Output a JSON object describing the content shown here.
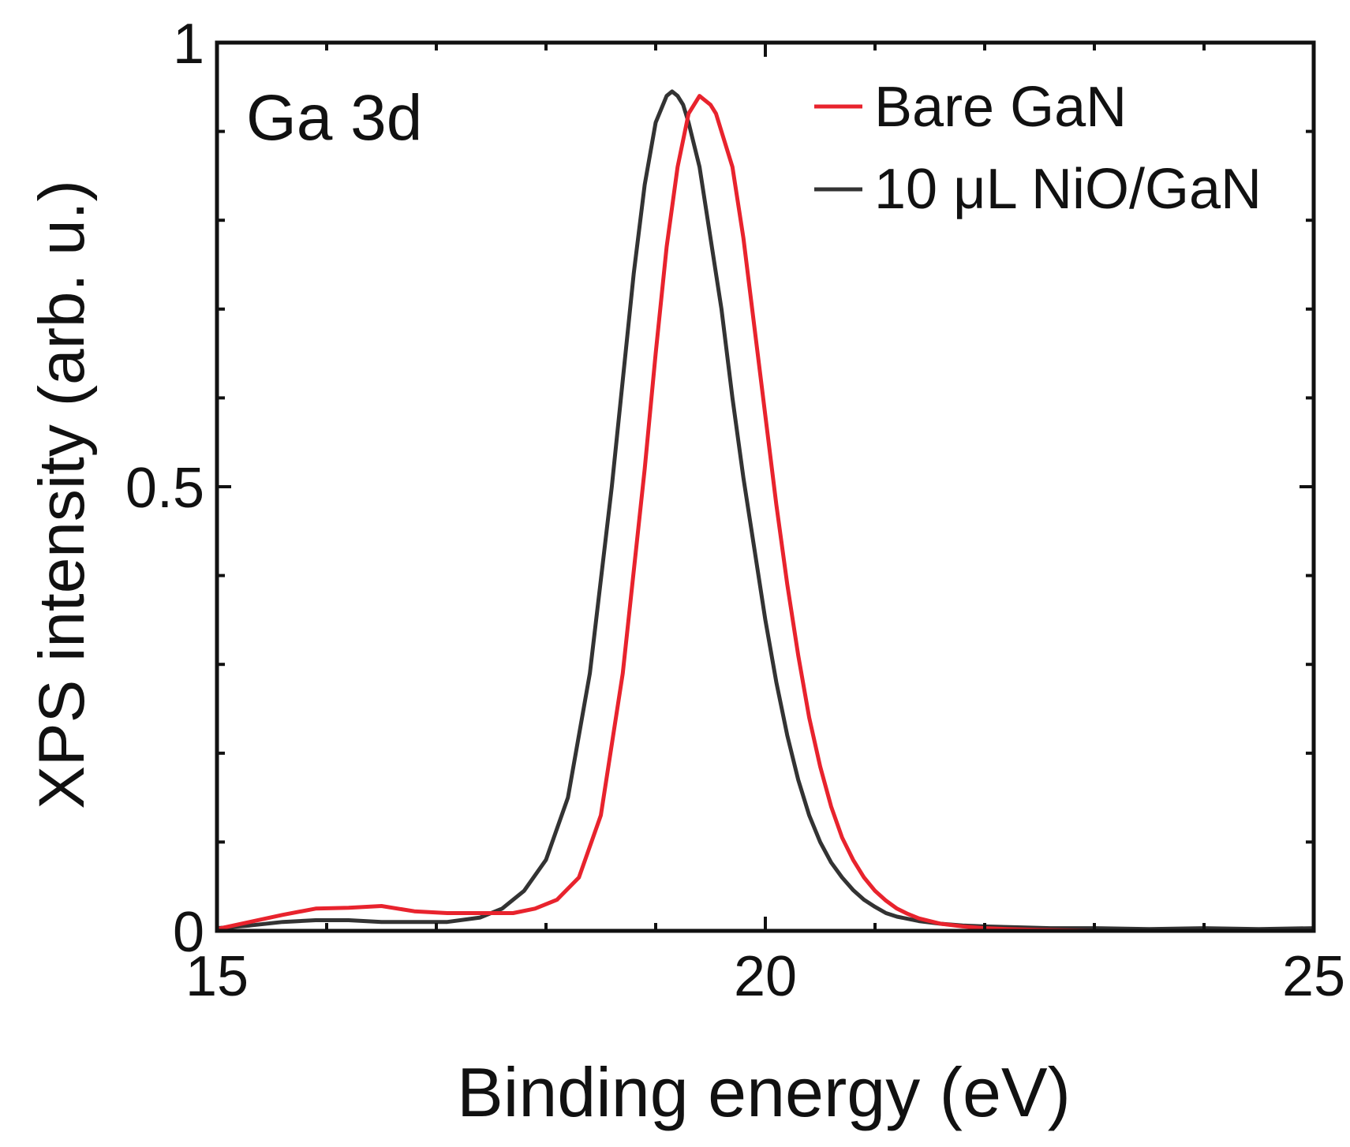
{
  "chart_data": {
    "type": "line",
    "annotation": "Ga 3d",
    "xlabel": "Binding energy (eV)",
    "ylabel": "XPS intensity (arb. u.)",
    "xlim": [
      15,
      25
    ],
    "ylim": [
      0,
      1
    ],
    "x_ticks": [
      15,
      20,
      25
    ],
    "x_tick_labels": [
      "15",
      "20",
      "25"
    ],
    "y_ticks": [
      0,
      0.5,
      1
    ],
    "y_tick_labels": [
      "0",
      "0.5",
      "1"
    ],
    "legend_position": "top-right",
    "series": [
      {
        "name": "Bare GaN",
        "color": "#e8232d",
        "x": [
          15.0,
          15.3,
          15.6,
          15.9,
          16.2,
          16.5,
          16.8,
          17.1,
          17.4,
          17.7,
          17.9,
          18.1,
          18.3,
          18.5,
          18.7,
          18.9,
          19.0,
          19.1,
          19.2,
          19.3,
          19.4,
          19.45,
          19.5,
          19.55,
          19.6,
          19.7,
          19.8,
          19.9,
          20.0,
          20.1,
          20.2,
          20.3,
          20.4,
          20.5,
          20.6,
          20.7,
          20.8,
          20.9,
          21.0,
          21.1,
          21.2,
          21.3,
          21.4,
          21.6,
          21.8,
          22.0,
          22.2,
          22.5,
          23.0,
          23.5,
          24.0,
          24.5,
          25.0
        ],
        "y": [
          0.002,
          0.01,
          0.018,
          0.025,
          0.026,
          0.028,
          0.022,
          0.02,
          0.02,
          0.02,
          0.025,
          0.035,
          0.06,
          0.13,
          0.29,
          0.52,
          0.65,
          0.77,
          0.86,
          0.92,
          0.94,
          0.935,
          0.93,
          0.92,
          0.9,
          0.86,
          0.78,
          0.68,
          0.58,
          0.48,
          0.39,
          0.31,
          0.24,
          0.185,
          0.14,
          0.105,
          0.08,
          0.06,
          0.045,
          0.034,
          0.025,
          0.019,
          0.014,
          0.008,
          0.005,
          0.003,
          0.002,
          0.001,
          0.0,
          0.0,
          0.0,
          0.0,
          0.0
        ]
      },
      {
        "name": "10 μL NiO/GaN",
        "color": "#333333",
        "x": [
          15.0,
          15.3,
          15.6,
          15.9,
          16.2,
          16.5,
          16.8,
          17.1,
          17.4,
          17.6,
          17.8,
          18.0,
          18.2,
          18.4,
          18.6,
          18.7,
          18.8,
          18.9,
          19.0,
          19.1,
          19.15,
          19.2,
          19.25,
          19.3,
          19.4,
          19.5,
          19.6,
          19.7,
          19.8,
          19.9,
          20.0,
          20.1,
          20.2,
          20.3,
          20.4,
          20.5,
          20.6,
          20.7,
          20.8,
          20.9,
          21.0,
          21.1,
          21.2,
          21.4,
          21.6,
          21.8,
          22.0,
          22.3,
          22.6,
          23.0,
          23.5,
          24.0,
          24.5,
          25.0
        ],
        "y": [
          0.003,
          0.006,
          0.01,
          0.012,
          0.012,
          0.01,
          0.01,
          0.01,
          0.015,
          0.025,
          0.045,
          0.08,
          0.15,
          0.29,
          0.5,
          0.62,
          0.74,
          0.84,
          0.91,
          0.94,
          0.945,
          0.94,
          0.93,
          0.91,
          0.86,
          0.78,
          0.7,
          0.6,
          0.51,
          0.43,
          0.35,
          0.28,
          0.22,
          0.17,
          0.13,
          0.1,
          0.077,
          0.06,
          0.046,
          0.035,
          0.027,
          0.02,
          0.016,
          0.011,
          0.008,
          0.006,
          0.005,
          0.004,
          0.003,
          0.003,
          0.002,
          0.003,
          0.002,
          0.003
        ]
      }
    ]
  }
}
